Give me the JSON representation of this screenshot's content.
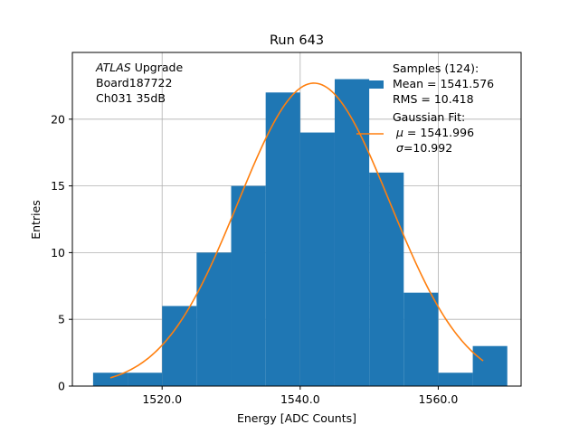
{
  "chart_data": {
    "type": "bar",
    "title": "Run 643",
    "xlabel": "Energy [ADC Counts]",
    "ylabel": "Entries",
    "xlim": [
      1507,
      1572
    ],
    "ylim": [
      0,
      25
    ],
    "grid": true,
    "xticks": [
      1520,
      1540,
      1560
    ],
    "xtick_labels": [
      "1520.0",
      "1540.0",
      "1560.0"
    ],
    "yticks": [
      0,
      5,
      10,
      15,
      20
    ],
    "ytick_labels": [
      "0",
      "5",
      "10",
      "15",
      "20"
    ],
    "bin_edges": [
      1510,
      1515,
      1520,
      1525,
      1530,
      1535,
      1540,
      1545,
      1550,
      1555,
      1560,
      1565,
      1570
    ],
    "values": [
      1,
      1,
      6,
      10,
      15,
      22,
      19,
      23,
      16,
      7,
      1,
      3
    ],
    "bar_color": "#1f77b4",
    "fit": {
      "mu": 1541.996,
      "sigma": 10.992,
      "peak": 22.7,
      "x_range": [
        1512.5,
        1566.5
      ],
      "color": "#ff7f0e"
    },
    "annotation_lines": [
      {
        "italic": "ATLAS",
        "rest": " Upgrade"
      },
      {
        "italic": "",
        "rest": " Board187722"
      },
      {
        "italic": "",
        "rest": " Ch031 35dB"
      }
    ],
    "legend": {
      "placement": "top-right",
      "hist_lines": [
        "Samples (124):",
        " Mean = 1541.576",
        " RMS = 10.418"
      ],
      "fit_lines": [
        {
          "sym": "",
          "rest": "Gaussian Fit:"
        },
        {
          "sym": "μ",
          "rest": " = 1541.996"
        },
        {
          "sym": "σ",
          "rest": "=10.992"
        }
      ]
    }
  }
}
